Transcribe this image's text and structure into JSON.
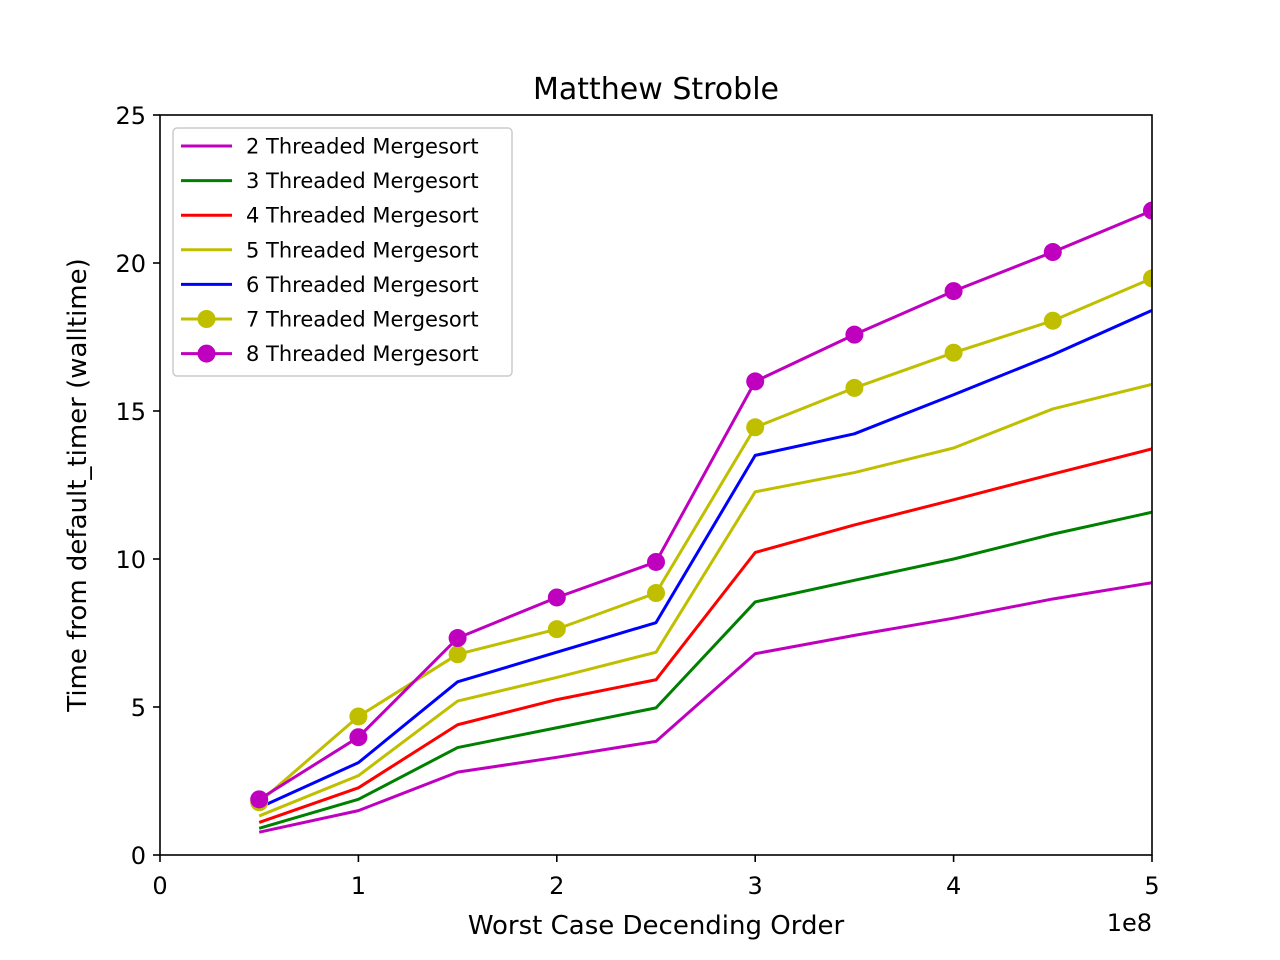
{
  "chart_data": {
    "type": "line",
    "title": "Matthew Stroble",
    "xlabel": "Worst Case Decending Order",
    "ylabel": "Time from default_timer (walltime)",
    "x_offset_text": "1e8",
    "xlim": [
      0,
      5
    ],
    "ylim": [
      0,
      25
    ],
    "x_ticks": [
      0,
      1,
      2,
      3,
      4,
      5
    ],
    "y_ticks": [
      0,
      5,
      10,
      15,
      20,
      25
    ],
    "grid": false,
    "legend_position": "upper-left",
    "x": [
      0.5,
      1.0,
      1.5,
      2.0,
      2.5,
      3.0,
      3.5,
      4.0,
      4.5,
      5.0
    ],
    "series": [
      {
        "name": "2 Threaded Mergesort",
        "color": "#bf00bf",
        "marker": false,
        "values": [
          0.77,
          1.5,
          2.8,
          3.3,
          3.84,
          6.8,
          7.42,
          8.0,
          8.65,
          9.2
        ]
      },
      {
        "name": "3 Threaded Mergesort",
        "color": "#008000",
        "marker": false,
        "values": [
          0.9,
          1.88,
          3.63,
          4.3,
          4.97,
          8.55,
          9.28,
          10.0,
          10.84,
          11.58
        ]
      },
      {
        "name": "4 Threaded Mergesort",
        "color": "#ff0000",
        "marker": false,
        "values": [
          1.1,
          2.27,
          4.4,
          5.25,
          5.92,
          10.22,
          11.15,
          12.0,
          12.87,
          13.72
        ]
      },
      {
        "name": "5 Threaded Mergesort",
        "color": "#bfbf00",
        "marker": false,
        "values": [
          1.32,
          2.68,
          5.2,
          6.0,
          6.85,
          12.27,
          12.92,
          13.75,
          15.07,
          15.9
        ]
      },
      {
        "name": "6 Threaded Mergesort",
        "color": "#0000ff",
        "marker": false,
        "values": [
          1.6,
          3.12,
          5.85,
          6.85,
          7.85,
          13.5,
          14.23,
          15.55,
          16.9,
          18.4
        ]
      },
      {
        "name": "7 Threaded Mergesort",
        "color": "#bfbf00",
        "marker": true,
        "values": [
          1.78,
          4.68,
          6.78,
          7.63,
          8.85,
          14.45,
          15.78,
          16.97,
          18.05,
          19.48
        ]
      },
      {
        "name": "8 Threaded Mergesort",
        "color": "#bf00bf",
        "marker": true,
        "values": [
          1.88,
          3.98,
          7.33,
          8.7,
          9.9,
          16.0,
          17.58,
          19.05,
          20.37,
          21.77
        ]
      }
    ]
  }
}
